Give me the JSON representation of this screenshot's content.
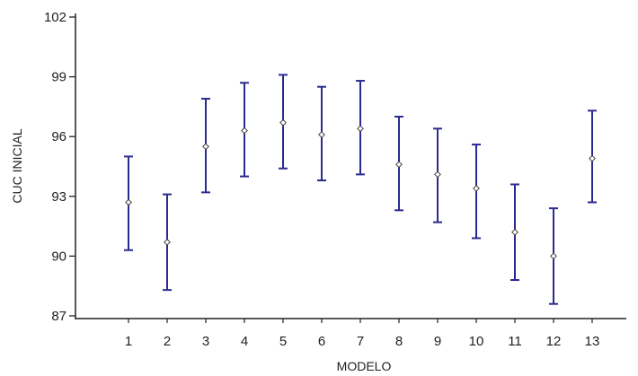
{
  "chart_data": {
    "type": "interval",
    "xlabel": "MODELO",
    "ylabel": "CUC INICIAL",
    "ylim": [
      87,
      102
    ],
    "yticks": [
      87,
      90,
      93,
      96,
      99,
      102
    ],
    "categories": [
      "1",
      "2",
      "3",
      "4",
      "5",
      "6",
      "7",
      "8",
      "9",
      "10",
      "11",
      "12",
      "13"
    ],
    "series": [
      {
        "center": [
          92.7,
          90.7,
          95.5,
          96.3,
          96.7,
          96.1,
          96.4,
          94.6,
          94.1,
          93.4,
          91.2,
          90.0,
          94.9
        ],
        "low": [
          90.3,
          88.3,
          93.2,
          94.0,
          94.4,
          93.8,
          94.1,
          92.3,
          91.7,
          90.9,
          88.8,
          87.6,
          92.7
        ],
        "high": [
          95.0,
          93.1,
          97.9,
          98.7,
          99.1,
          98.5,
          98.8,
          97.0,
          96.4,
          95.6,
          93.6,
          92.4,
          97.3
        ]
      }
    ],
    "grid": false,
    "colors": {
      "interval": "#2b2b8f",
      "axis": "#222222"
    }
  }
}
